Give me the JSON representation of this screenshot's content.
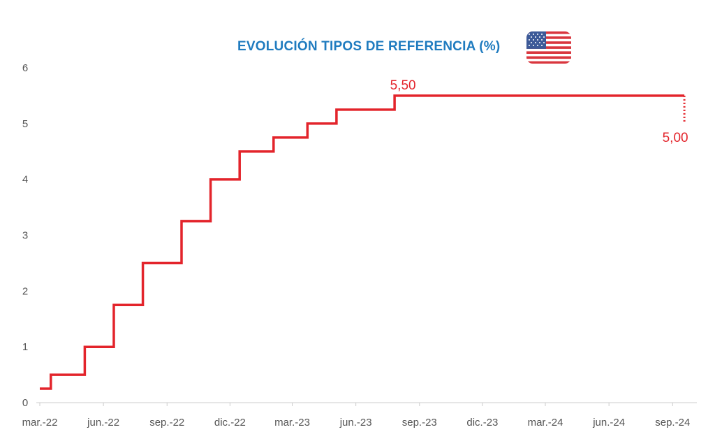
{
  "chart_data": {
    "type": "line",
    "title": "EVOLUCIÓN TIPOS DE REFERENCIA (%)",
    "xlabel": "",
    "ylabel": "",
    "x_tick_labels": [
      "mar.-22",
      "jun.-22",
      "sep.-22",
      "dic.-22",
      "mar.-23",
      "jun.-23",
      "sep.-23",
      "dic.-23",
      "mar.-24",
      "jun.-24",
      "sep.-24"
    ],
    "y_ticks": [
      "0",
      "1",
      "2",
      "3",
      "4",
      "5",
      "6"
    ],
    "ylim": [
      0,
      6
    ],
    "xlim": [
      "2022-03-01",
      "2024-09-30"
    ],
    "grid": false,
    "series": [
      {
        "color": "#e3242b",
        "points": [
          [
            "2022-03-01",
            0.25
          ],
          [
            "2022-03-17",
            0.25
          ],
          [
            "2022-03-17",
            0.5
          ],
          [
            "2022-05-05",
            0.5
          ],
          [
            "2022-05-05",
            1.0
          ],
          [
            "2022-06-16",
            1.0
          ],
          [
            "2022-06-16",
            1.75
          ],
          [
            "2022-07-28",
            1.75
          ],
          [
            "2022-07-28",
            2.5
          ],
          [
            "2022-09-22",
            2.5
          ],
          [
            "2022-09-22",
            3.25
          ],
          [
            "2022-11-03",
            3.25
          ],
          [
            "2022-11-03",
            4.0
          ],
          [
            "2022-12-15",
            4.0
          ],
          [
            "2022-12-15",
            4.5
          ],
          [
            "2023-02-02",
            4.5
          ],
          [
            "2023-02-02",
            4.75
          ],
          [
            "2023-03-23",
            4.75
          ],
          [
            "2023-03-23",
            5.0
          ],
          [
            "2023-05-04",
            5.0
          ],
          [
            "2023-05-04",
            5.25
          ],
          [
            "2023-07-27",
            5.25
          ],
          [
            "2023-07-27",
            5.5
          ],
          [
            "2024-09-18",
            5.5
          ]
        ]
      },
      {
        "color": "#e3242b",
        "style": "dotted",
        "points": [
          [
            "2024-09-18",
            5.5
          ],
          [
            "2024-09-18",
            5.0
          ]
        ]
      }
    ],
    "annotations": [
      {
        "text": "5,50",
        "x": "2023-07-27",
        "y": 5.5
      },
      {
        "text": "5,00",
        "x": "2024-09-18",
        "y": 5.0
      }
    ]
  },
  "flag_icon": "us-flag-icon",
  "colors": {
    "line": "#e3242b",
    "title": "#1f7bbf",
    "axis": "#cccccc",
    "tick_text": "#555555"
  }
}
